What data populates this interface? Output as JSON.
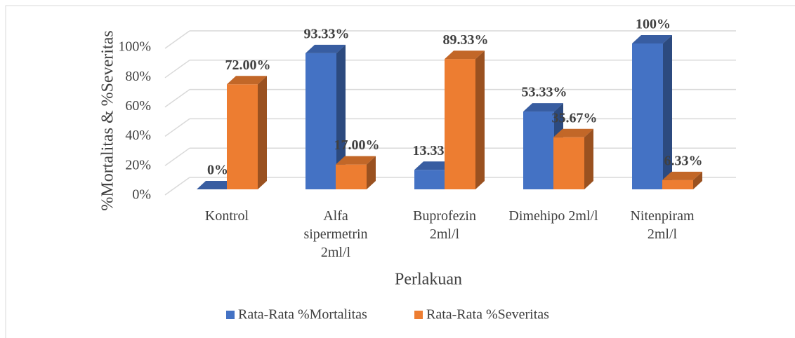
{
  "chart_data": {
    "type": "bar3d",
    "categories": [
      "Kontrol",
      "Alfa sipermetrin 2ml/l",
      "Buprofezin 2ml/l",
      "Dimehipo 2ml/l",
      "Nitenpiram 2ml/l"
    ],
    "series": [
      {
        "name": "Rata-Rata %Mortalitas",
        "color": "#4472c4",
        "values": [
          0,
          93.33,
          13.33,
          53.33,
          100
        ],
        "value_labels": [
          "0%",
          "93.33%",
          "13.33%",
          "53.33%",
          "100%"
        ]
      },
      {
        "name": "Rata-Rata %Severitas",
        "color": "#ed7d31",
        "values": [
          72,
          17,
          89.33,
          35.67,
          6.33
        ],
        "value_labels": [
          "72.00%",
          "17.00%",
          "89.33%",
          "35.67%",
          "6.33%"
        ]
      }
    ],
    "ylim": [
      0,
      100
    ],
    "yticks": [
      {
        "value": 0,
        "label": "0%"
      },
      {
        "value": 20,
        "label": "20%"
      },
      {
        "value": 40,
        "label": "40%"
      },
      {
        "value": 60,
        "label": "60%"
      },
      {
        "value": 80,
        "label": "80%"
      },
      {
        "value": 100,
        "label": "100%"
      }
    ],
    "x_label": "Perlakuan",
    "y_label": "%Mortalitas & %Severitas",
    "grid": true
  }
}
